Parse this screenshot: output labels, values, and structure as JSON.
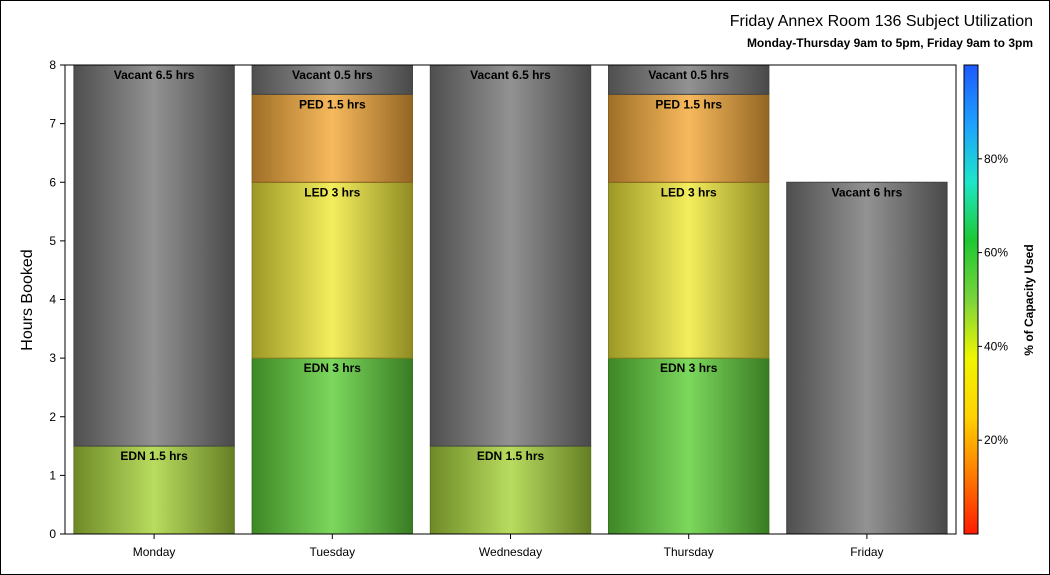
{
  "chart_data": {
    "type": "bar",
    "stacked": true,
    "title": "Friday Annex Room 136 Subject Utilization",
    "subtitle": "Monday-Thursday 9am to 5pm, Friday 9am to 3pm",
    "ylabel": "Hours Booked",
    "xlabel": "",
    "ylim": [
      0,
      8
    ],
    "yticks": [
      0,
      1,
      2,
      3,
      4,
      5,
      6,
      7,
      8
    ],
    "categories": [
      "Monday",
      "Tuesday",
      "Wednesday",
      "Thursday",
      "Friday"
    ],
    "bars": [
      {
        "category": "Monday",
        "segments": [
          {
            "label": "EDN 1.5 hrs",
            "value": 1.5,
            "color": "#a9d43c"
          },
          {
            "label": "Vacant 6.5 hrs",
            "value": 6.5,
            "color": "#7a7a7a"
          }
        ]
      },
      {
        "category": "Tuesday",
        "segments": [
          {
            "label": "EDN 3 hrs",
            "value": 3,
            "color": "#5fcf3a"
          },
          {
            "label": "LED 3 hrs",
            "value": 3,
            "color": "#f0ea3a"
          },
          {
            "label": "PED 1.5 hrs",
            "value": 1.5,
            "color": "#f5aa3a"
          },
          {
            "label": "Vacant 0.5 hrs",
            "value": 0.5,
            "color": "#7a7a7a"
          }
        ]
      },
      {
        "category": "Wednesday",
        "segments": [
          {
            "label": "EDN 1.5 hrs",
            "value": 1.5,
            "color": "#a9d43c"
          },
          {
            "label": "Vacant 6.5 hrs",
            "value": 6.5,
            "color": "#7a7a7a"
          }
        ]
      },
      {
        "category": "Thursday",
        "segments": [
          {
            "label": "EDN 3 hrs",
            "value": 3,
            "color": "#5fcf3a"
          },
          {
            "label": "LED 3 hrs",
            "value": 3,
            "color": "#f0ea3a"
          },
          {
            "label": "PED 1.5 hrs",
            "value": 1.5,
            "color": "#f5aa3a"
          },
          {
            "label": "Vacant 0.5 hrs",
            "value": 0.5,
            "color": "#7a7a7a"
          }
        ]
      },
      {
        "category": "Friday",
        "segments": [
          {
            "label": "Vacant 6 hrs",
            "value": 6,
            "color": "#7a7a7a"
          }
        ]
      }
    ],
    "colorbar": {
      "label": "% of Capacity Used",
      "ticks": [
        "20%",
        "40%",
        "60%",
        "80%"
      ],
      "tick_values": [
        20,
        40,
        60,
        80
      ],
      "range": [
        0,
        100
      ],
      "colors": [
        "#ff1a00",
        "#ff7a00",
        "#ffd200",
        "#f0f500",
        "#7ad43c",
        "#1ec832",
        "#1ee6c8",
        "#1ea0ff",
        "#1e5aff"
      ]
    },
    "grid": false,
    "legend": "colorbar-right"
  }
}
